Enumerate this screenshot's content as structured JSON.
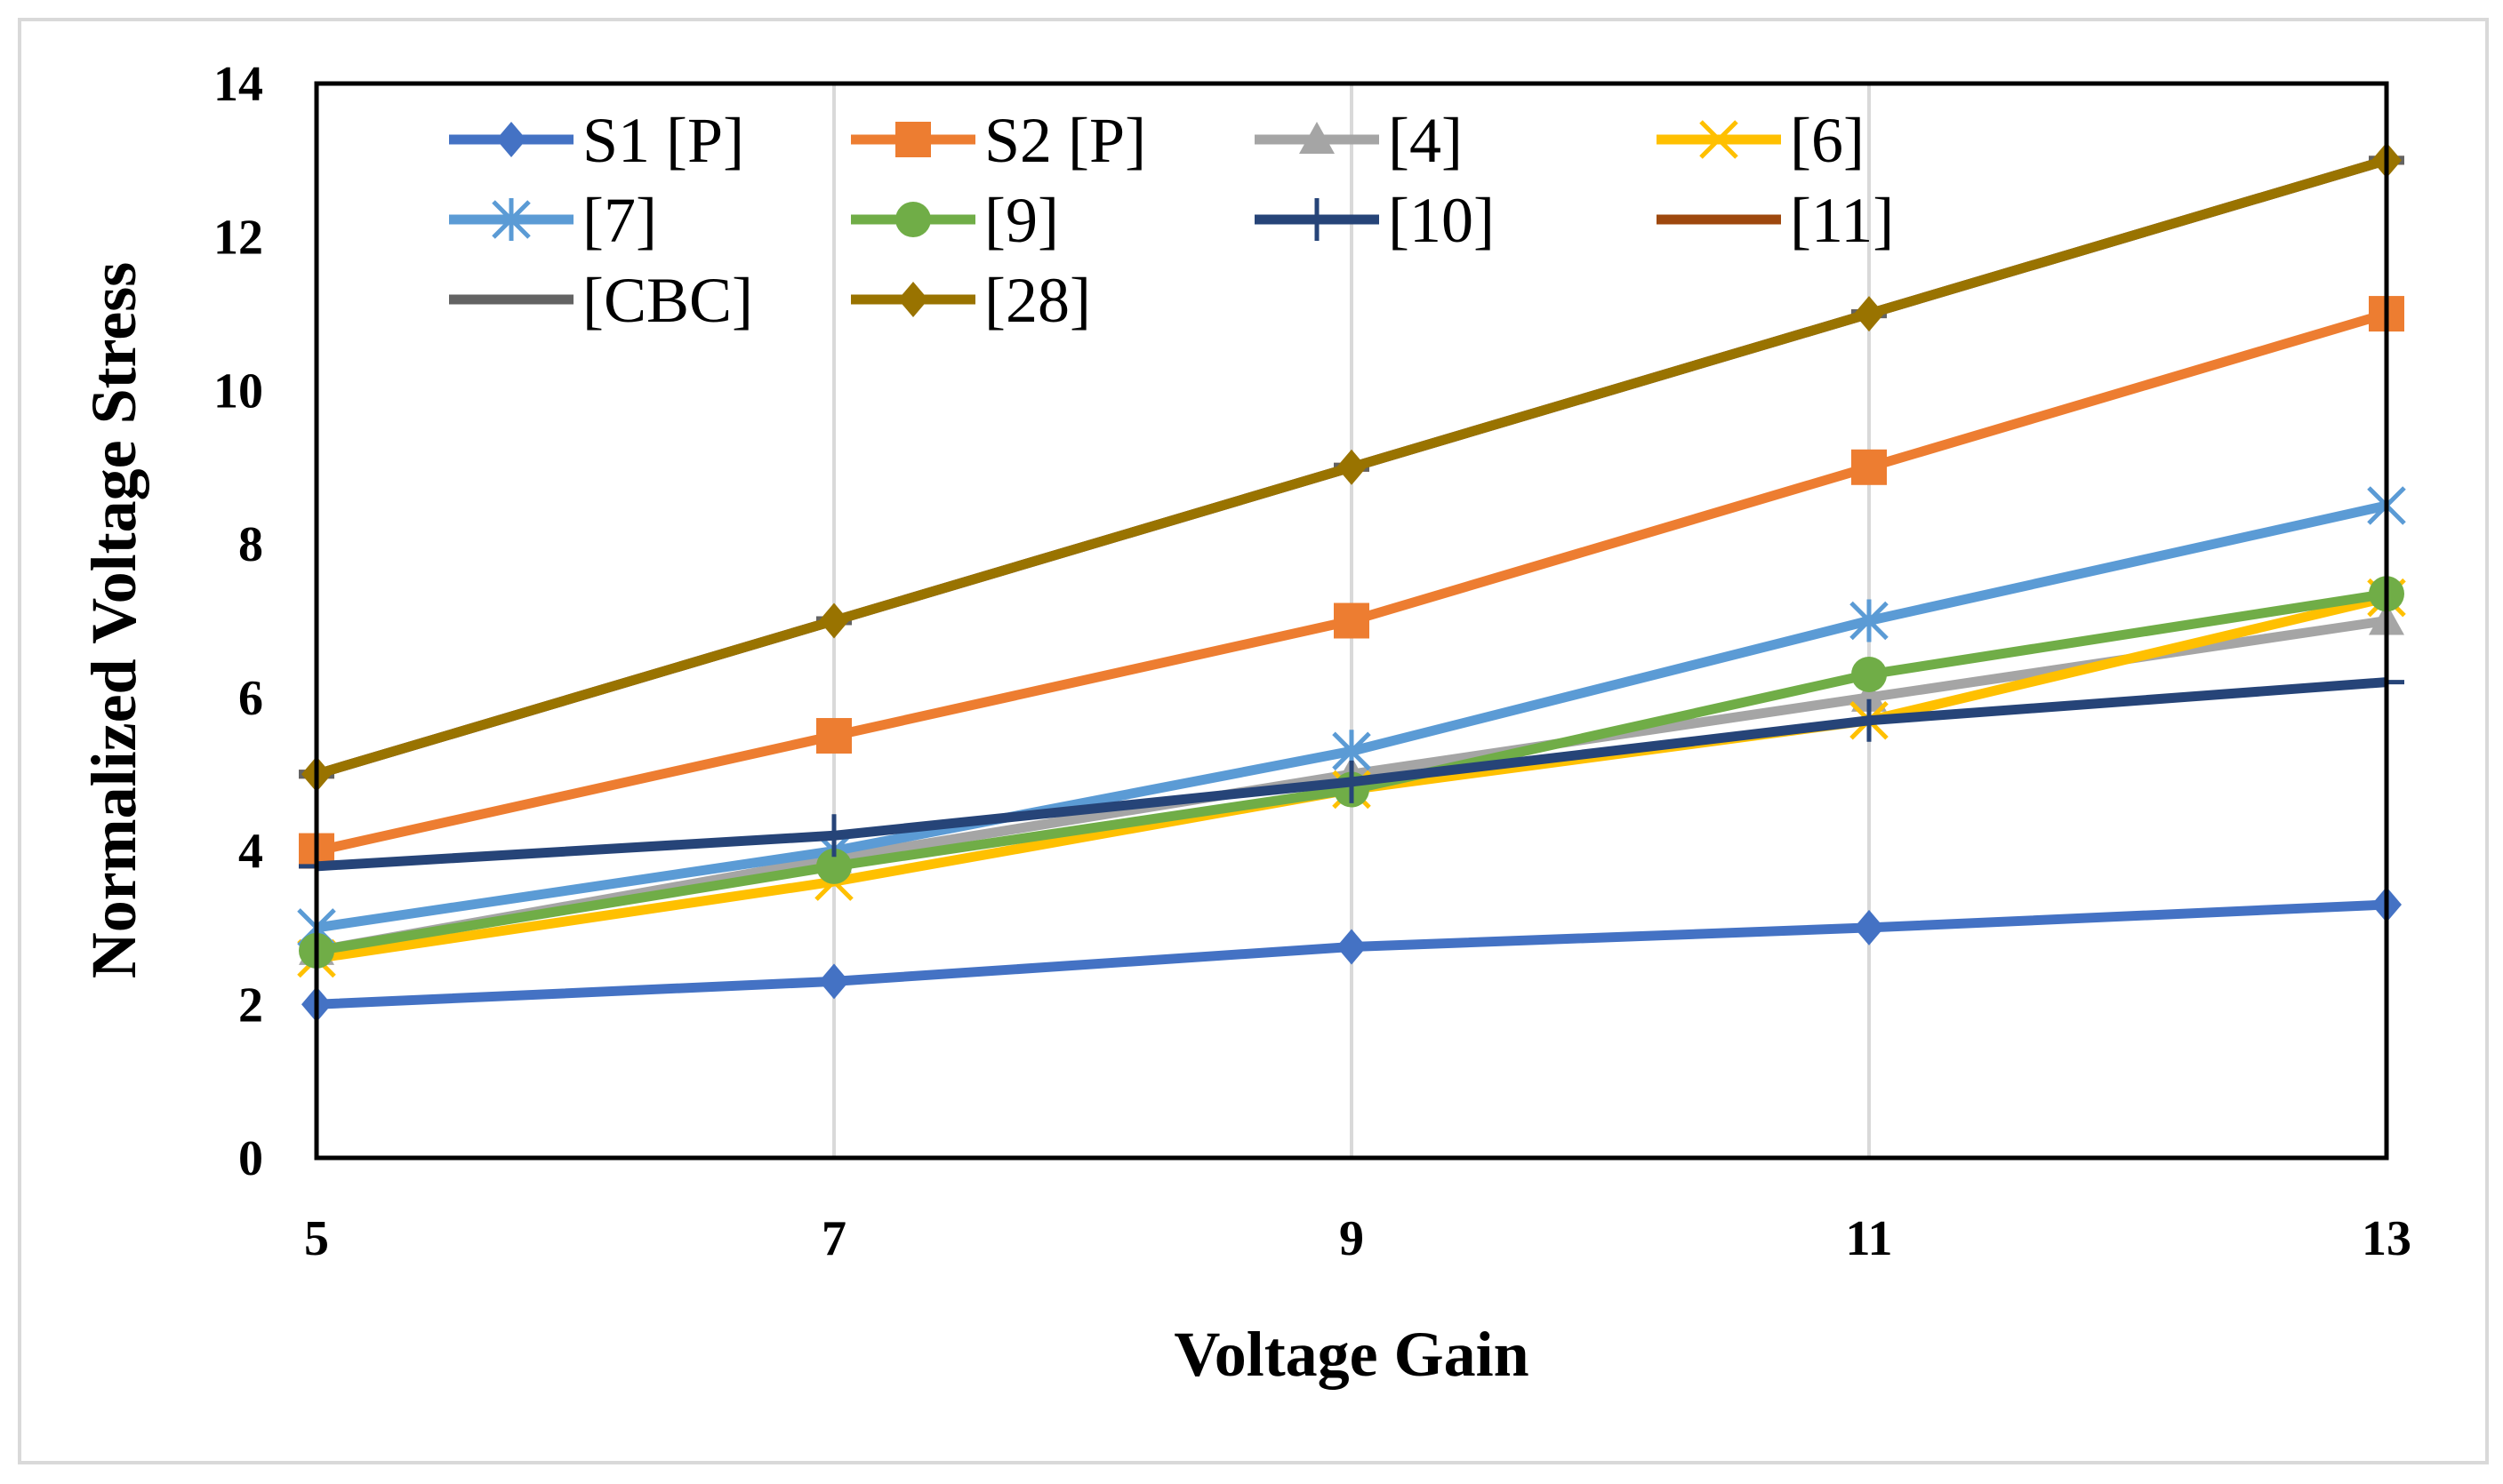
{
  "chart_data": {
    "type": "line",
    "title": "",
    "xlabel": "Voltage Gain",
    "ylabel": "Normalized Voltage Stress",
    "x": [
      5,
      7,
      9,
      11,
      13
    ],
    "xlim": [
      5,
      13
    ],
    "ylim": [
      0,
      14
    ],
    "yticks": [
      0,
      2,
      4,
      6,
      8,
      10,
      12,
      14
    ],
    "xticks": [
      5,
      7,
      9,
      11,
      13
    ],
    "grid": "vertical",
    "legend_placement": "top-left inside",
    "series": [
      {
        "name": "S1 [P]",
        "color": "#4472C4",
        "marker": "diamond",
        "values": [
          2.0,
          2.3,
          2.75,
          3.0,
          3.3
        ]
      },
      {
        "name": "S2 [P]",
        "color": "#ED7D31",
        "marker": "square",
        "values": [
          4.0,
          5.5,
          7.0,
          9.0,
          11.0
        ]
      },
      {
        "name": "[4]",
        "color": "#A5A5A5",
        "marker": "triangle",
        "values": [
          2.7,
          3.9,
          5.0,
          6.0,
          7.0
        ]
      },
      {
        "name": "[6]",
        "color": "#FFC000",
        "marker": "x",
        "values": [
          2.6,
          3.6,
          4.8,
          5.7,
          7.3
        ]
      },
      {
        "name": "[7]",
        "color": "#5B9BD5",
        "marker": "star",
        "values": [
          3.0,
          4.0,
          5.3,
          7.0,
          8.5
        ]
      },
      {
        "name": "[9]",
        "color": "#70AD47",
        "marker": "circle",
        "values": [
          2.7,
          3.8,
          4.8,
          6.3,
          7.35
        ]
      },
      {
        "name": "[10]",
        "color": "#264478",
        "marker": "plus",
        "values": [
          3.8,
          4.2,
          4.9,
          5.7,
          6.2
        ]
      },
      {
        "name": "[11]",
        "color": "#9E480E",
        "marker": "dash",
        "values": [
          5.0,
          7.0,
          9.0,
          11.0,
          13.0
        ]
      },
      {
        "name": "[CBC]",
        "color": "#636363",
        "marker": "dash",
        "values": [
          5.0,
          7.0,
          9.0,
          11.0,
          13.0
        ]
      },
      {
        "name": "[28]",
        "color": "#997300",
        "marker": "diamond",
        "values": [
          5.0,
          7.0,
          9.0,
          11.0,
          13.0
        ]
      }
    ]
  }
}
